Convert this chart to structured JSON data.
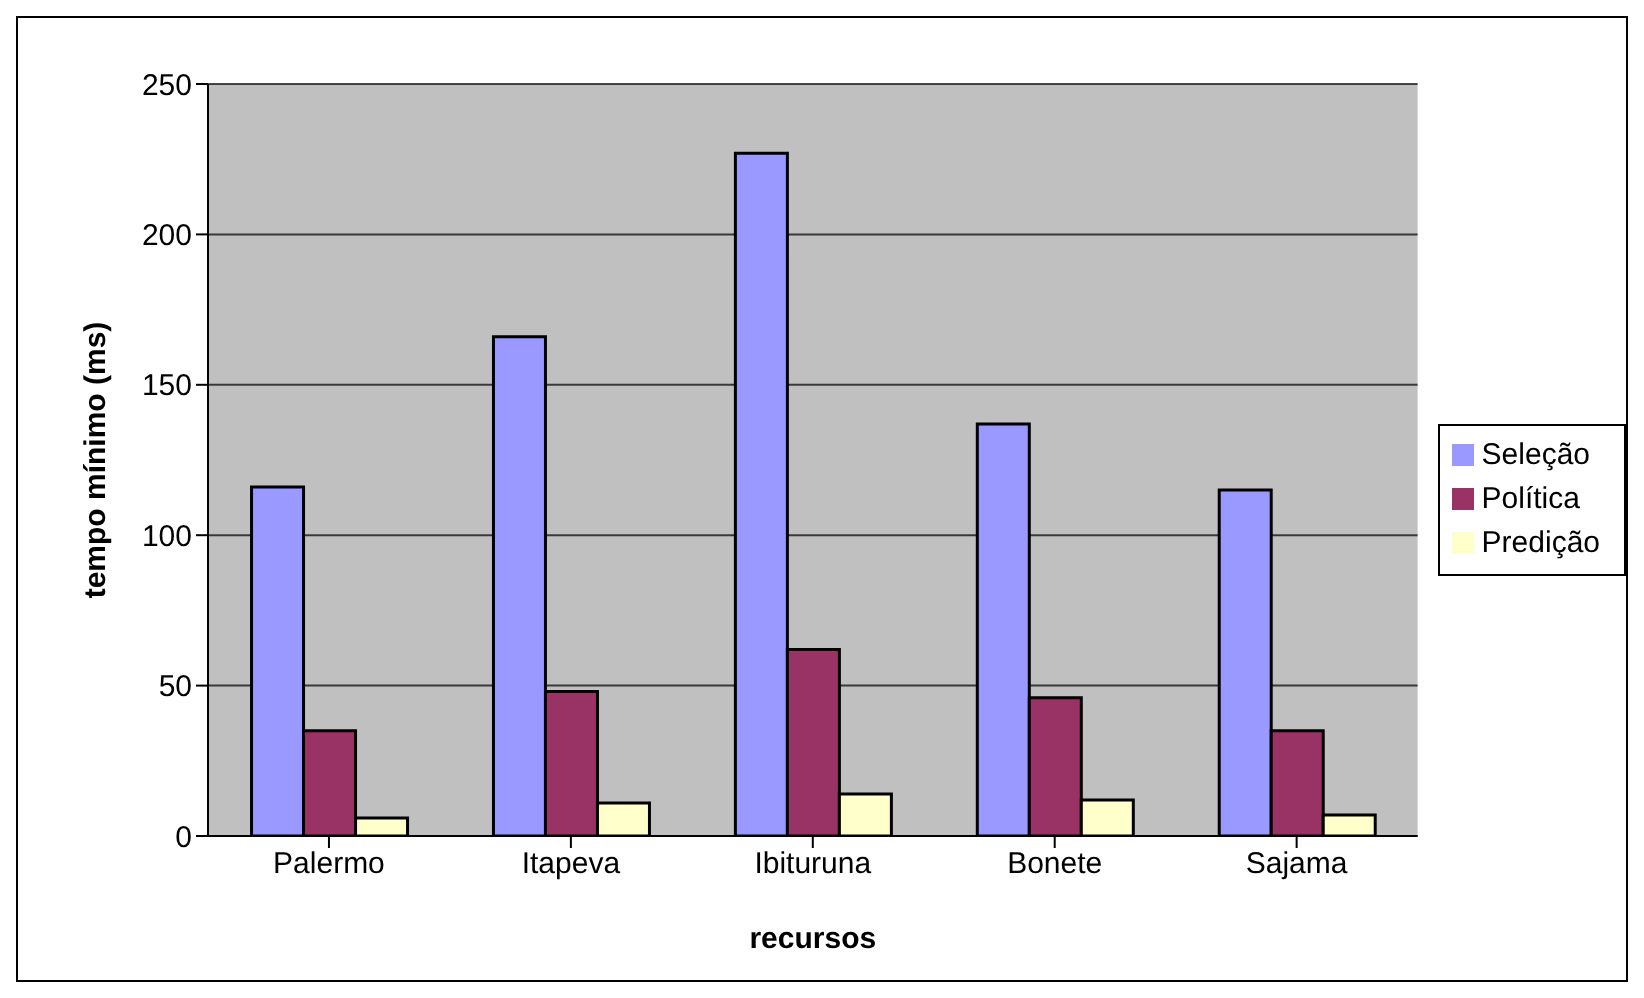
{
  "chart_data": {
    "type": "bar",
    "xlabel": "recursos",
    "ylabel": "tempo mínimo (ms)",
    "categories": [
      "Palermo",
      "Itapeva",
      "Ibituruna",
      "Bonete",
      "Sajama"
    ],
    "series": [
      {
        "name": "Seleção",
        "color": "#9999ff",
        "values": [
          116,
          166,
          227,
          137,
          115
        ]
      },
      {
        "name": "Política",
        "color": "#993366",
        "values": [
          35,
          48,
          62,
          46,
          35
        ]
      },
      {
        "name": "Predição",
        "color": "#ffffcc",
        "values": [
          6,
          11,
          14,
          12,
          7
        ]
      }
    ],
    "ylim": [
      0,
      250
    ],
    "yticks": [
      0,
      50,
      100,
      150,
      200,
      250
    ],
    "grid": "y",
    "legend": "right"
  }
}
